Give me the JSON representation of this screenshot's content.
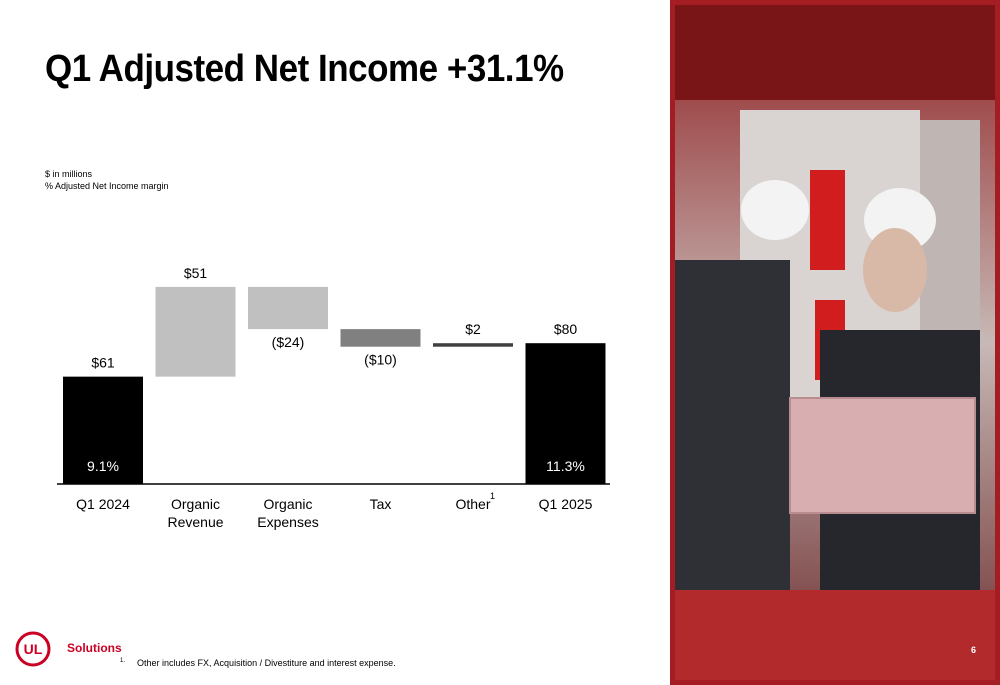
{
  "slide": {
    "title": "Q1 Adjusted Net Income +31.1%",
    "unit_note": "$ in millions",
    "margin_note": "% Adjusted Net Income margin",
    "footnote_marker": "1.",
    "footnote": "Other includes FX, Acquisition / Divestiture and interest expense.",
    "page_number": "6",
    "logo_text": "Solutions",
    "logo_mark": "UL"
  },
  "chart_data": {
    "type": "waterfall",
    "title": "",
    "xlabel": "",
    "ylabel": "",
    "ylim": [
      0,
      90
    ],
    "categories": [
      "Q1 2024",
      "Organic Revenue",
      "Organic Expenses",
      "Tax",
      "Other",
      "Q1 2025"
    ],
    "category_lines": [
      [
        "Q1 2024"
      ],
      [
        "Organic",
        "Revenue"
      ],
      [
        "Organic",
        "Expenses"
      ],
      [
        "Tax"
      ],
      [
        "Other"
      ],
      [
        "Q1 2025"
      ]
    ],
    "category_superscripts": [
      "",
      "",
      "",
      "",
      "1",
      ""
    ],
    "values": [
      61,
      51,
      -24,
      -10,
      2,
      80
    ],
    "value_labels": [
      "$61",
      "$51",
      "($24)",
      "($10)",
      "$2",
      "$80"
    ],
    "kinds": [
      "total",
      "delta",
      "delta",
      "delta",
      "delta",
      "total"
    ],
    "margin_labels": [
      "9.1%",
      "",
      "",
      "",
      "",
      "11.3%"
    ],
    "colors": [
      "#000000",
      "#c0c0c0",
      "#c0c0c0",
      "#808080",
      "#404040",
      "#000000"
    ],
    "grid": false,
    "legend": "none"
  },
  "colors": {
    "brand_red": "#ca0123",
    "photo_bg": "#3a0d10"
  }
}
